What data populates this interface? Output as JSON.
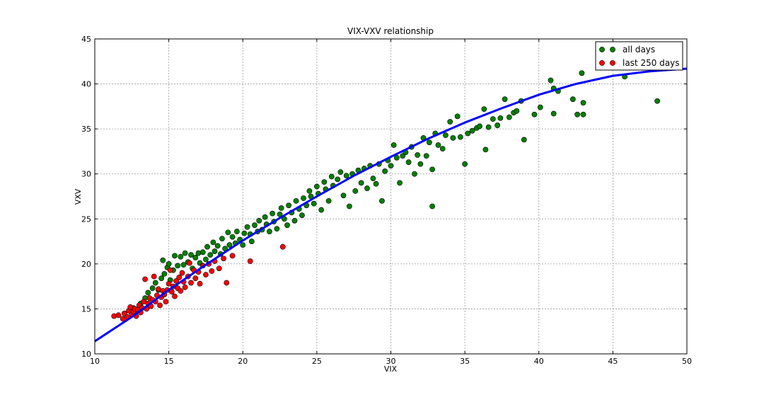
{
  "chart_data": {
    "type": "scatter",
    "title": "VIX-VXV relationship",
    "xlabel": "VIX",
    "ylabel": "VXV",
    "xlim": [
      10,
      50
    ],
    "ylim": [
      10,
      45
    ],
    "x_ticks": [
      10,
      15,
      20,
      25,
      30,
      35,
      40,
      45,
      50
    ],
    "y_ticks": [
      10,
      15,
      20,
      25,
      30,
      35,
      40,
      45
    ],
    "x_tick_labels": [
      "10",
      "15",
      "20",
      "25",
      "30",
      "35",
      "40",
      "45",
      "50"
    ],
    "y_tick_labels": [
      "10",
      "15",
      "20",
      "25",
      "30",
      "35",
      "40",
      "45"
    ],
    "grid": true,
    "legend_position": "top-right",
    "colors": {
      "all_days": "#008000",
      "last_250_days": "#ff0000",
      "fit": "#0000ff"
    },
    "series": [
      {
        "name": "all days",
        "marker": "circle",
        "color": "#008000",
        "points": [
          [
            12.6,
            15.1
          ],
          [
            12.8,
            14.8
          ],
          [
            13.1,
            15.6
          ],
          [
            13.4,
            16.2
          ],
          [
            13.6,
            16.8
          ],
          [
            13.9,
            17.3
          ],
          [
            14.1,
            17.9
          ],
          [
            14.3,
            17.1
          ],
          [
            14.5,
            18.4
          ],
          [
            14.6,
            20.4
          ],
          [
            14.7,
            18.9
          ],
          [
            14.9,
            19.6
          ],
          [
            15.0,
            20.0
          ],
          [
            15.1,
            18.2
          ],
          [
            15.3,
            19.3
          ],
          [
            15.4,
            20.9
          ],
          [
            15.6,
            19.8
          ],
          [
            15.8,
            20.8
          ],
          [
            16.0,
            19.9
          ],
          [
            16.1,
            21.2
          ],
          [
            16.3,
            20.2
          ],
          [
            16.5,
            21.0
          ],
          [
            16.6,
            19.5
          ],
          [
            16.8,
            20.7
          ],
          [
            17.0,
            21.2
          ],
          [
            17.1,
            20.1
          ],
          [
            17.3,
            21.3
          ],
          [
            17.5,
            20.5
          ],
          [
            17.6,
            21.9
          ],
          [
            17.8,
            21.0
          ],
          [
            18.0,
            22.4
          ],
          [
            18.1,
            21.4
          ],
          [
            18.3,
            22.0
          ],
          [
            18.5,
            21.1
          ],
          [
            18.6,
            22.8
          ],
          [
            18.8,
            21.7
          ],
          [
            19.0,
            23.5
          ],
          [
            19.1,
            22.1
          ],
          [
            19.3,
            23.0
          ],
          [
            19.5,
            22.3
          ],
          [
            19.6,
            23.6
          ],
          [
            19.8,
            22.7
          ],
          [
            20.0,
            22.1
          ],
          [
            20.1,
            23.4
          ],
          [
            20.3,
            24.1
          ],
          [
            20.5,
            23.3
          ],
          [
            20.6,
            22.5
          ],
          [
            20.8,
            24.3
          ],
          [
            21.0,
            23.6
          ],
          [
            21.1,
            24.8
          ],
          [
            21.3,
            23.8
          ],
          [
            21.5,
            25.2
          ],
          [
            21.6,
            24.4
          ],
          [
            21.8,
            23.6
          ],
          [
            22.0,
            25.6
          ],
          [
            22.1,
            24.7
          ],
          [
            22.3,
            23.9
          ],
          [
            22.5,
            25.5
          ],
          [
            22.6,
            26.2
          ],
          [
            22.8,
            25.0
          ],
          [
            23.0,
            24.3
          ],
          [
            23.1,
            26.5
          ],
          [
            23.3,
            25.7
          ],
          [
            23.5,
            24.8
          ],
          [
            23.6,
            27.0
          ],
          [
            23.8,
            26.1
          ],
          [
            24.0,
            25.4
          ],
          [
            24.1,
            27.3
          ],
          [
            24.3,
            26.5
          ],
          [
            24.5,
            28.1
          ],
          [
            24.6,
            27.5
          ],
          [
            24.8,
            26.7
          ],
          [
            25.0,
            28.6
          ],
          [
            25.1,
            27.8
          ],
          [
            25.3,
            26.0
          ],
          [
            25.5,
            29.1
          ],
          [
            25.6,
            28.3
          ],
          [
            25.8,
            27.0
          ],
          [
            26.0,
            29.7
          ],
          [
            26.1,
            28.7
          ],
          [
            26.4,
            29.4
          ],
          [
            26.6,
            30.2
          ],
          [
            26.8,
            27.6
          ],
          [
            27.0,
            29.8
          ],
          [
            27.2,
            26.4
          ],
          [
            27.4,
            30.0
          ],
          [
            27.6,
            28.1
          ],
          [
            27.8,
            30.4
          ],
          [
            28.0,
            29.0
          ],
          [
            28.2,
            30.6
          ],
          [
            28.4,
            28.4
          ],
          [
            28.6,
            30.9
          ],
          [
            28.8,
            29.5
          ],
          [
            29.0,
            28.9
          ],
          [
            29.2,
            31.1
          ],
          [
            29.4,
            27.0
          ],
          [
            29.6,
            30.3
          ],
          [
            29.8,
            31.5
          ],
          [
            30.0,
            30.9
          ],
          [
            30.2,
            33.2
          ],
          [
            30.4,
            31.8
          ],
          [
            30.6,
            29.0
          ],
          [
            30.8,
            32.0
          ],
          [
            31.0,
            32.4
          ],
          [
            31.2,
            31.3
          ],
          [
            31.4,
            33.0
          ],
          [
            31.6,
            30.0
          ],
          [
            31.8,
            32.1
          ],
          [
            32.0,
            31.1
          ],
          [
            32.2,
            34.0
          ],
          [
            32.4,
            32.0
          ],
          [
            32.6,
            33.5
          ],
          [
            32.8,
            30.5
          ],
          [
            32.8,
            26.4
          ],
          [
            33.0,
            34.5
          ],
          [
            33.2,
            33.2
          ],
          [
            33.5,
            32.8
          ],
          [
            33.7,
            34.3
          ],
          [
            34.0,
            35.8
          ],
          [
            34.2,
            34.0
          ],
          [
            34.5,
            36.4
          ],
          [
            34.7,
            34.1
          ],
          [
            35.0,
            31.1
          ],
          [
            35.2,
            34.5
          ],
          [
            35.5,
            34.8
          ],
          [
            35.8,
            35.1
          ],
          [
            36.0,
            35.3
          ],
          [
            36.3,
            37.2
          ],
          [
            36.4,
            32.7
          ],
          [
            36.6,
            35.2
          ],
          [
            36.9,
            36.1
          ],
          [
            37.2,
            35.4
          ],
          [
            37.4,
            36.2
          ],
          [
            37.7,
            38.3
          ],
          [
            38.0,
            36.3
          ],
          [
            38.3,
            36.8
          ],
          [
            38.5,
            37.0
          ],
          [
            38.8,
            38.1
          ],
          [
            39.0,
            33.8
          ],
          [
            39.7,
            36.6
          ],
          [
            40.1,
            37.4
          ],
          [
            40.8,
            40.4
          ],
          [
            41.0,
            36.7
          ],
          [
            41.0,
            39.5
          ],
          [
            41.3,
            39.2
          ],
          [
            42.3,
            38.3
          ],
          [
            42.6,
            36.6
          ],
          [
            42.9,
            41.2
          ],
          [
            43.0,
            36.6
          ],
          [
            43.0,
            37.9
          ],
          [
            45.8,
            40.8
          ],
          [
            48.0,
            38.1
          ]
        ]
      },
      {
        "name": "last 250 days",
        "marker": "circle",
        "color": "#ff0000",
        "points": [
          [
            11.3,
            14.2
          ],
          [
            11.6,
            14.3
          ],
          [
            11.9,
            13.9
          ],
          [
            12.0,
            14.5
          ],
          [
            12.2,
            14.1
          ],
          [
            12.3,
            14.8
          ],
          [
            12.4,
            15.2
          ],
          [
            12.5,
            14.4
          ],
          [
            12.6,
            14.7
          ],
          [
            12.7,
            15.0
          ],
          [
            12.8,
            14.2
          ],
          [
            12.9,
            14.9
          ],
          [
            13.0,
            15.4
          ],
          [
            13.1,
            14.6
          ],
          [
            13.2,
            15.1
          ],
          [
            13.3,
            15.8
          ],
          [
            13.4,
            18.3
          ],
          [
            13.5,
            15.0
          ],
          [
            13.6,
            15.6
          ],
          [
            13.7,
            16.2
          ],
          [
            13.8,
            15.3
          ],
          [
            13.9,
            16.0
          ],
          [
            14.0,
            18.6
          ],
          [
            14.1,
            15.8
          ],
          [
            14.2,
            16.5
          ],
          [
            14.3,
            17.2
          ],
          [
            14.4,
            15.4
          ],
          [
            14.5,
            16.3
          ],
          [
            14.6,
            17.0
          ],
          [
            14.7,
            16.6
          ],
          [
            14.8,
            15.8
          ],
          [
            14.9,
            17.1
          ],
          [
            15.0,
            17.8
          ],
          [
            15.1,
            19.3
          ],
          [
            15.2,
            16.9
          ],
          [
            15.3,
            17.5
          ],
          [
            15.4,
            16.4
          ],
          [
            15.5,
            18.1
          ],
          [
            15.6,
            17.3
          ],
          [
            15.7,
            18.5
          ],
          [
            15.8,
            17.0
          ],
          [
            15.9,
            19.0
          ],
          [
            16.0,
            18.0
          ],
          [
            16.1,
            17.4
          ],
          [
            16.3,
            18.6
          ],
          [
            16.4,
            20.1
          ],
          [
            16.5,
            17.9
          ],
          [
            16.7,
            19.3
          ],
          [
            16.8,
            18.4
          ],
          [
            17.0,
            19.1
          ],
          [
            17.1,
            17.8
          ],
          [
            17.3,
            19.8
          ],
          [
            17.5,
            18.8
          ],
          [
            17.7,
            20.0
          ],
          [
            17.9,
            19.2
          ],
          [
            18.1,
            20.3
          ],
          [
            18.4,
            19.5
          ],
          [
            18.7,
            20.6
          ],
          [
            18.9,
            17.9
          ],
          [
            19.3,
            20.9
          ],
          [
            20.5,
            20.3
          ],
          [
            22.7,
            21.9
          ]
        ]
      }
    ],
    "fit_line": {
      "label": "",
      "color": "#0000ff",
      "points": [
        [
          10,
          11.4
        ],
        [
          12.5,
          14.1
        ],
        [
          15,
          17.1
        ],
        [
          17.5,
          19.9
        ],
        [
          20,
          22.6
        ],
        [
          22.5,
          25.1
        ],
        [
          25,
          27.5
        ],
        [
          27.5,
          29.8
        ],
        [
          30,
          31.9
        ],
        [
          32.5,
          33.9
        ],
        [
          35,
          35.7
        ],
        [
          37.5,
          37.3
        ],
        [
          40,
          38.8
        ],
        [
          42.5,
          40.0
        ],
        [
          45,
          40.9
        ],
        [
          47.5,
          41.4
        ],
        [
          50,
          41.7
        ]
      ]
    }
  }
}
